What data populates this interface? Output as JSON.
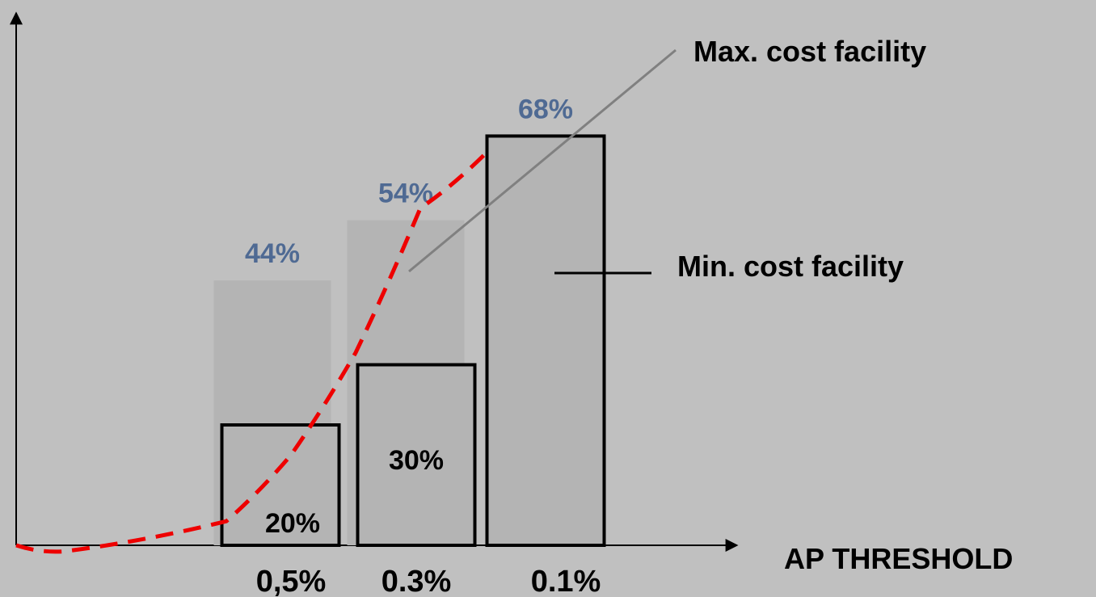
{
  "chart_data": {
    "type": "bar",
    "xlabel": "AP THRESHOLD",
    "categories": [
      "0,5%",
      "0.3%",
      "0.1%"
    ],
    "series": [
      {
        "name": "Max. cost facility",
        "values": [
          44,
          54,
          68
        ],
        "labels": [
          "44%",
          "54%",
          "68%"
        ],
        "color": "#b4b4b4",
        "label_color": "#4f6a93"
      },
      {
        "name": "Min. cost facility",
        "values": [
          20,
          30,
          68
        ],
        "labels": [
          "20%",
          "30%",
          ""
        ],
        "color": "#b4b4b4",
        "stroke": "#000000"
      }
    ],
    "curve": {
      "color": "#ee0000",
      "style": "dashed",
      "points": [
        [
          -0.5,
          0
        ],
        [
          -0.3,
          -1
        ],
        [
          0,
          4
        ],
        [
          0.5,
          15
        ],
        [
          1,
          32
        ],
        [
          1.5,
          56
        ],
        [
          2,
          65
        ]
      ]
    },
    "grid": false,
    "legend": "callouts"
  }
}
